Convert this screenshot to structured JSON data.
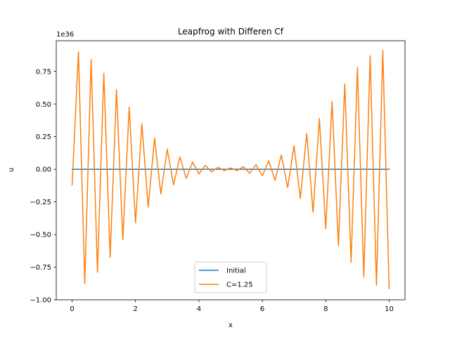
{
  "chart_data": {
    "type": "line",
    "title": "Leapfrog with Differen Cf",
    "xlabel": "x",
    "ylabel": "u",
    "y_scale_label": "1e36",
    "xlim": [
      -0.5,
      10.5
    ],
    "ylim": [
      -1.0,
      0.985
    ],
    "x_ticks": [
      0,
      2,
      4,
      6,
      8,
      10
    ],
    "x_tick_labels": [
      "0",
      "2",
      "4",
      "6",
      "8",
      "10"
    ],
    "y_ticks": [
      -1.0,
      -0.75,
      -0.5,
      -0.25,
      0.0,
      0.25,
      0.5,
      0.75
    ],
    "y_tick_labels": [
      "−1.00",
      "−0.75",
      "−0.50",
      "−0.25",
      "0.00",
      "0.25",
      "0.50",
      "0.75"
    ],
    "grid": false,
    "legend_position": "lower center",
    "colors": {
      "Initial": "#1f77b4",
      "C=1.25": "#ff7f0e"
    },
    "x": [
      0.0,
      0.2,
      0.4,
      0.6,
      0.8,
      1.0,
      1.2,
      1.4,
      1.6,
      1.8,
      2.0,
      2.2,
      2.4,
      2.6,
      2.8,
      3.0,
      3.2,
      3.4,
      3.6,
      3.8,
      4.0,
      4.2,
      4.4,
      4.6,
      4.8,
      5.0,
      5.2,
      5.4,
      5.6,
      5.8,
      6.0,
      6.2,
      6.4,
      6.6,
      6.8,
      7.0,
      7.2,
      7.4,
      7.6,
      7.8,
      8.0,
      8.2,
      8.4,
      8.6,
      8.8,
      9.0,
      9.2,
      9.4,
      9.6,
      9.8,
      10.0
    ],
    "series": [
      {
        "name": "Initial",
        "values": [
          0,
          0,
          0,
          0,
          0,
          0,
          0,
          0,
          0,
          0,
          0,
          0,
          0,
          0,
          0,
          0,
          0,
          0,
          0,
          0,
          0,
          0,
          0,
          0,
          0,
          0,
          0,
          0,
          0,
          0,
          0,
          0,
          0,
          0,
          0,
          0,
          0,
          0,
          0,
          0,
          0,
          0,
          0,
          0,
          0,
          0,
          0,
          0,
          0,
          0,
          0
        ]
      },
      {
        "name": "C=1.25",
        "values": [
          -0.12,
          0.9,
          -0.875,
          0.84,
          -0.79,
          0.735,
          -0.675,
          0.61,
          -0.54,
          0.475,
          -0.41,
          0.35,
          -0.29,
          0.24,
          -0.19,
          0.155,
          -0.12,
          0.095,
          -0.07,
          0.055,
          -0.035,
          0.03,
          -0.02,
          0.015,
          -0.01,
          0.01,
          -0.01,
          0.02,
          -0.03,
          0.035,
          -0.05,
          0.065,
          -0.085,
          0.11,
          -0.14,
          0.18,
          -0.225,
          0.275,
          -0.33,
          0.39,
          -0.455,
          0.52,
          -0.585,
          0.655,
          -0.715,
          0.78,
          -0.825,
          0.87,
          -0.89,
          0.91,
          -0.915
        ]
      }
    ]
  }
}
